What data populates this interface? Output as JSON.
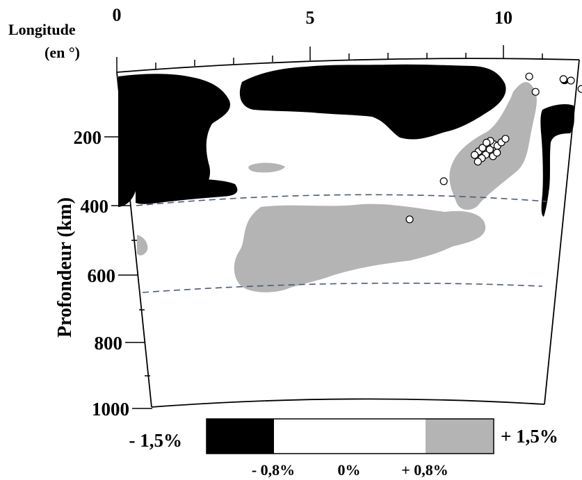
{
  "chart_data": {
    "type": "heatmap",
    "title": "",
    "xlabel": "Longitude\n(en °)",
    "xlabel_line1": "Longitude",
    "xlabel_line2": "(en °)",
    "ylabel": "Profondeur (km)",
    "x_ticks": [
      "0",
      "5",
      "10"
    ],
    "x_range": [
      0,
      12
    ],
    "y_ticks": [
      "200",
      "400",
      "600",
      "800",
      "1000"
    ],
    "y_range": [
      0,
      1000
    ],
    "y_inverted": true,
    "discontinuity_depths_km": [
      400,
      650
    ],
    "colorscale": {
      "min_label": "- 1,5%",
      "max_label": "+ 1,5%",
      "tick_labels": [
        "- 0,8%",
        "0%",
        "+ 0,8%"
      ],
      "bins": [
        {
          "from": -1.5,
          "to": -0.8,
          "color": "#000000"
        },
        {
          "from": -0.8,
          "to": 0.8,
          "color": "#ffffff"
        },
        {
          "from": 0.8,
          "to": 1.5,
          "color": "#b4b4b4"
        }
      ]
    },
    "events": [
      {
        "lon": 9.5,
        "depth": 260
      },
      {
        "lon": 9.6,
        "depth": 250
      },
      {
        "lon": 9.7,
        "depth": 270
      },
      {
        "lon": 9.8,
        "depth": 255
      },
      {
        "lon": 9.9,
        "depth": 240
      },
      {
        "lon": 10.0,
        "depth": 245
      },
      {
        "lon": 9.6,
        "depth": 280
      },
      {
        "lon": 9.8,
        "depth": 230
      },
      {
        "lon": 10.1,
        "depth": 235
      },
      {
        "lon": 9.4,
        "depth": 270
      },
      {
        "lon": 9.9,
        "depth": 275
      },
      {
        "lon": 10.2,
        "depth": 225
      },
      {
        "lon": 9.7,
        "depth": 235
      },
      {
        "lon": 9.5,
        "depth": 290
      },
      {
        "lon": 10.0,
        "depth": 265
      },
      {
        "lon": 8.6,
        "depth": 345
      },
      {
        "lon": 7.7,
        "depth": 455
      },
      {
        "lon": 10.7,
        "depth": 45
      },
      {
        "lon": 10.9,
        "depth": 90
      },
      {
        "lon": 11.6,
        "depth": 55
      },
      {
        "lon": 11.8,
        "depth": 60
      },
      {
        "lon": 12.1,
        "depth": 85
      }
    ]
  },
  "colors": {
    "negative": "#000000",
    "positive": "#b4b4b4",
    "neutral": "#ffffff",
    "discontinuity_line": "#4a5a70"
  }
}
